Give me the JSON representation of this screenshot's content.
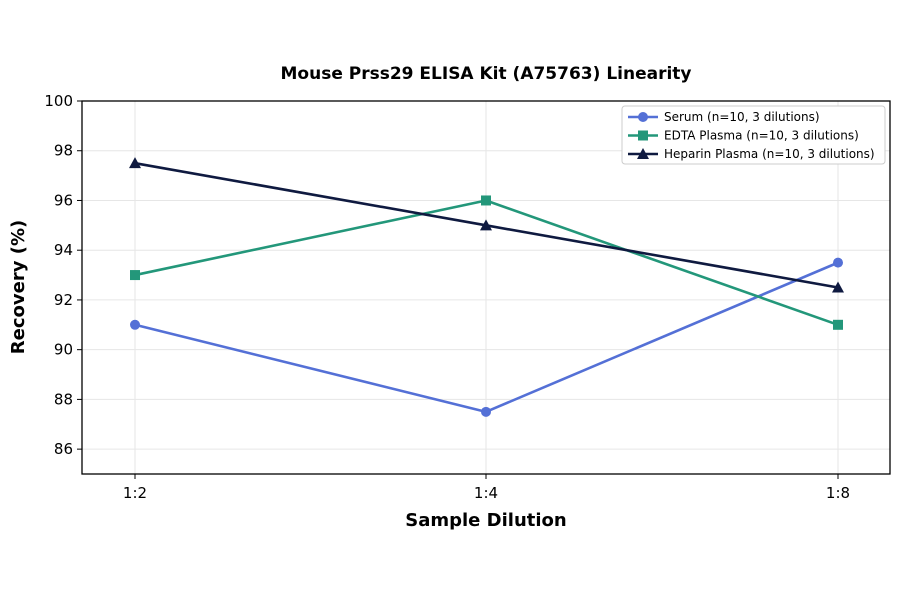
{
  "chart_data": {
    "type": "line",
    "title": "Mouse Prss29 ELISA Kit (A75763) Linearity",
    "xlabel": "Sample Dilution",
    "ylabel": "Recovery (%)",
    "categories": [
      "1:2",
      "1:4",
      "1:8"
    ],
    "ylim": [
      85,
      100
    ],
    "yticks": [
      86,
      88,
      90,
      92,
      94,
      96,
      98,
      100
    ],
    "grid": true,
    "legend_position": "top-right",
    "series": [
      {
        "name": "Serum (n=10, 3 dilutions)",
        "values": [
          91.0,
          87.5,
          93.5
        ],
        "color": "#5470d6",
        "marker": "circle"
      },
      {
        "name": "EDTA Plasma (n=10, 3 dilutions)",
        "values": [
          93.0,
          96.0,
          91.0
        ],
        "color": "#23977a",
        "marker": "square"
      },
      {
        "name": "Heparin Plasma (n=10, 3 dilutions)",
        "values": [
          97.5,
          95.0,
          92.5
        ],
        "color": "#0f1a40",
        "marker": "triangle"
      }
    ]
  }
}
